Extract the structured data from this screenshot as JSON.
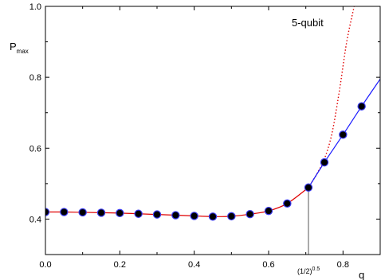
{
  "chart_data": {
    "type": "line",
    "annotation": "5-qubit",
    "ylabel_main": "P",
    "ylabel_sub": "max",
    "xlabel": "q",
    "xlim": [
      0.0,
      0.9
    ],
    "ylim": [
      0.3,
      1.0
    ],
    "x_ticks": [
      {
        "value": 0.0,
        "label": "0.0"
      },
      {
        "value": 0.2,
        "label": "0.2"
      },
      {
        "value": 0.4,
        "label": "0.4"
      },
      {
        "value": 0.6,
        "label": "0.6"
      },
      {
        "value": 0.8,
        "label": "0.8"
      }
    ],
    "y_ticks": [
      {
        "value": 0.4,
        "label": "0.4"
      },
      {
        "value": 0.6,
        "label": "0.6"
      },
      {
        "value": 0.8,
        "label": "0.8"
      },
      {
        "value": 1.0,
        "label": "1.0"
      }
    ],
    "marker_line": {
      "x": 0.7071,
      "label_base": "(1/2)",
      "label_exp": "0.5"
    },
    "series": [
      {
        "style": "markers",
        "color": "#000000",
        "x": [
          0.0,
          0.05,
          0.1,
          0.15,
          0.2,
          0.25,
          0.3,
          0.35,
          0.4,
          0.45,
          0.5,
          0.55,
          0.6,
          0.65,
          0.7071,
          0.75,
          0.8,
          0.85
        ],
        "y": [
          0.42,
          0.42,
          0.419,
          0.418,
          0.417,
          0.415,
          0.413,
          0.411,
          0.409,
          0.407,
          0.408,
          0.414,
          0.423,
          0.444,
          0.489,
          0.56,
          0.638,
          0.718
        ]
      },
      {
        "style": "solid",
        "color": "#e00000",
        "x": [
          0.0,
          0.05,
          0.1,
          0.15,
          0.2,
          0.25,
          0.3,
          0.35,
          0.4,
          0.45,
          0.5,
          0.55,
          0.6,
          0.65,
          0.7071
        ],
        "y": [
          0.42,
          0.42,
          0.419,
          0.418,
          0.417,
          0.415,
          0.413,
          0.411,
          0.409,
          0.407,
          0.408,
          0.414,
          0.423,
          0.444,
          0.489
        ]
      },
      {
        "style": "dotted",
        "color": "#e00000",
        "x": [
          0.7071,
          0.73,
          0.75,
          0.77,
          0.79,
          0.81,
          0.83
        ],
        "y": [
          0.489,
          0.528,
          0.57,
          0.64,
          0.76,
          0.9,
          1.0
        ]
      },
      {
        "style": "solid",
        "color": "#1a1aff",
        "x": [
          0.7071,
          0.75,
          0.8,
          0.85,
          0.9
        ],
        "y": [
          0.489,
          0.56,
          0.638,
          0.718,
          0.795
        ]
      }
    ]
  }
}
